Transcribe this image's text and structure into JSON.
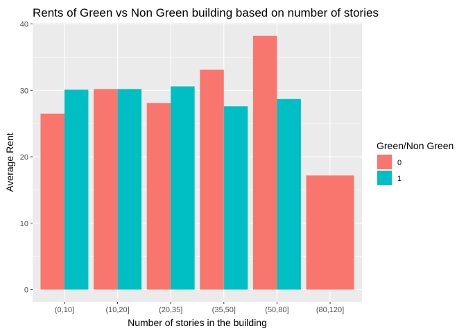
{
  "chart_data": {
    "type": "bar",
    "title": "Rents of Green vs Non Green building based on number of stories",
    "xlabel": "Number of stories in the building",
    "ylabel": "Average Rent",
    "categories": [
      "(0,10]",
      "(10,20]",
      "(20,35]",
      "(35,50]",
      "(50,80]",
      "(80,120]"
    ],
    "series": [
      {
        "name": "0",
        "color": "#F8766D",
        "values": [
          26.5,
          30.2,
          28.1,
          33.1,
          38.2,
          17.2
        ]
      },
      {
        "name": "1",
        "color": "#00BFC4",
        "values": [
          30.1,
          30.2,
          30.6,
          27.6,
          28.7,
          null
        ]
      }
    ],
    "ylim": [
      0,
      40
    ],
    "yticks": [
      0,
      10,
      20,
      30,
      40
    ],
    "legend": {
      "title": "Green/Non Green",
      "position": "right"
    },
    "grid": true,
    "panel_background": "#EBEBEB"
  }
}
